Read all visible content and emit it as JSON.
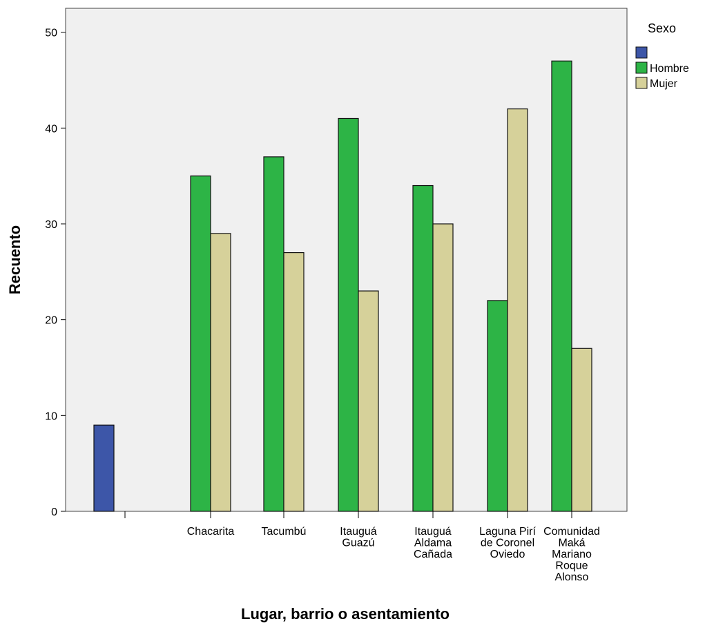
{
  "chart_data": {
    "type": "bar",
    "title": "",
    "xlabel": "Lugar, barrio o asentamiento",
    "ylabel": "Recuento",
    "ylim": [
      0,
      52.5
    ],
    "yticks": [
      0,
      10,
      20,
      30,
      40,
      50
    ],
    "grid": false,
    "legend_position": "right",
    "legend_title": "Sexo",
    "categories": [
      "",
      "Chacarita",
      "Tacumbú",
      "Itauguá Guazú",
      "Itauguá Aldama Cañada",
      "Laguna Pirí de Coronel Oviedo",
      "Comunidad Maká Mariano Roque Alonso"
    ],
    "category_lines": [
      [],
      [
        "Chacarita"
      ],
      [
        "Tacumbú"
      ],
      [
        "Itauguá",
        "Guazú"
      ],
      [
        "Itauguá",
        "Aldama",
        "Cañada"
      ],
      [
        "Laguna Pirí",
        "de Coronel",
        "Oviedo"
      ],
      [
        "Comunidad",
        "Maká",
        "Mariano",
        "Roque",
        "Alonso"
      ]
    ],
    "series": [
      {
        "name": "",
        "color": "#3d56a8",
        "values": [
          9,
          null,
          null,
          null,
          null,
          null,
          null
        ]
      },
      {
        "name": "Hombre",
        "color": "#2db446",
        "values": [
          null,
          35,
          37,
          41,
          34,
          22,
          47
        ]
      },
      {
        "name": "Mujer",
        "color": "#d6d19a",
        "values": [
          null,
          29,
          27,
          23,
          30,
          42,
          17
        ]
      }
    ],
    "plot_background": "#f0f0f0"
  }
}
